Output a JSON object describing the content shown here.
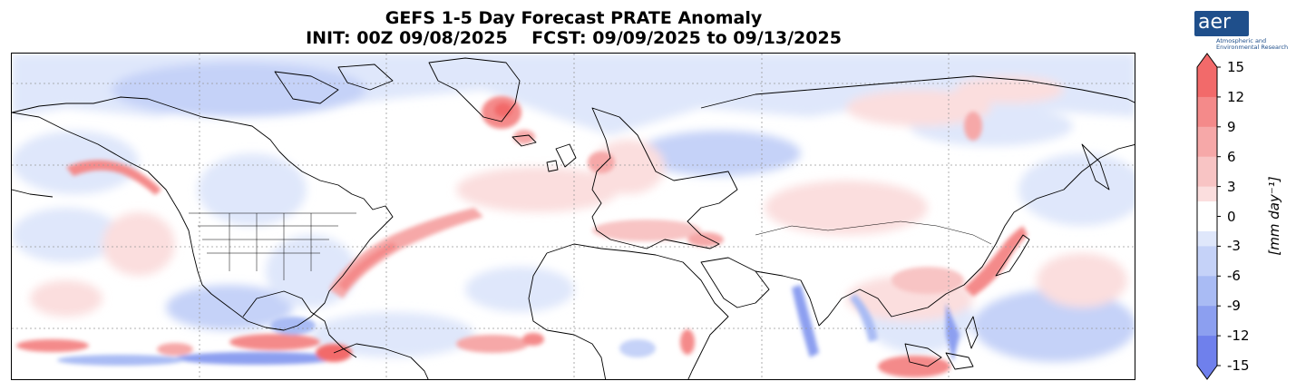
{
  "title": {
    "line1": "GEFS 1-5 Day Forecast PRATE Anomaly",
    "line2": "INIT: 00Z 09/08/2025    FCST: 09/09/2025 to 09/13/2025"
  },
  "logo": {
    "mark": "aer",
    "line1": "Atmospheric and",
    "line2": "Environmental Research"
  },
  "colorbar": {
    "unit_label": "[mm day⁻¹]",
    "ticks": [
      "15",
      "12",
      "9",
      "6",
      "3",
      "0",
      "-3",
      "-6",
      "-9",
      "-12",
      "-15"
    ],
    "range": [
      -15,
      15
    ],
    "extend": "both",
    "colors": {
      "p15": "#f26a6a",
      "p12": "#f48a8a",
      "p9": "#f6a8a8",
      "p6": "#f8c4c4",
      "p3": "#fbdede",
      "zero": "#ffffff",
      "n3": "#dfe7fb",
      "n6": "#c5d2f8",
      "n9": "#a9bbf4",
      "n12": "#8c9ff0",
      "n15": "#6f80ec"
    }
  },
  "map": {
    "projection": "Plate Carrée",
    "gridlines": "dotted",
    "coastline_color": "#000000"
  }
}
